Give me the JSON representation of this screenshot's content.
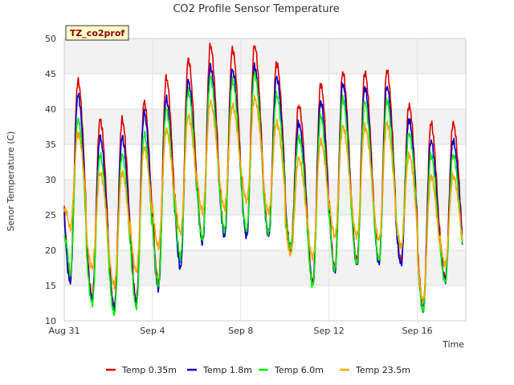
{
  "chart_data": {
    "type": "line",
    "title": "CO2 Profile Sensor Temperature",
    "xlabel": "Time",
    "ylabel": "Senor Temperature (C)",
    "site_tag": "TZ_co2prof",
    "ylim": [
      10,
      50
    ],
    "yticks": [
      10,
      15,
      20,
      25,
      30,
      35,
      40,
      45,
      50
    ],
    "xlim_days": [
      0,
      18.2
    ],
    "xticks": [
      {
        "day": 0,
        "label": "Aug 31"
      },
      {
        "day": 4,
        "label": "Sep 4"
      },
      {
        "day": 8,
        "label": "Sep 8"
      },
      {
        "day": 12,
        "label": "Sep 12"
      },
      {
        "day": 16,
        "label": "Sep 16"
      }
    ],
    "grid": true,
    "legend_position": "bottom",
    "series": [
      {
        "name": "Temp 0.35m",
        "color": "#dd0000",
        "day_min": [
          16,
          13.5,
          12,
          13,
          15.5,
          18.5,
          21.5,
          22.5,
          22.2,
          22.5,
          20.5,
          15.5,
          17.5,
          18.5,
          18.5,
          18.5,
          12,
          16
        ],
        "day_max": [
          44,
          38.5,
          38.5,
          41,
          44.5,
          47,
          49,
          48.5,
          49,
          46.5,
          40.5,
          43.5,
          45.2,
          45.2,
          45.5,
          40.5,
          38,
          38
        ]
      },
      {
        "name": "Temp 1.8m",
        "color": "#0000cc",
        "day_min": [
          15.5,
          13,
          11.8,
          12.5,
          14.5,
          17.5,
          21,
          22,
          22,
          22,
          20,
          15.2,
          17,
          18,
          18.2,
          18,
          11.5,
          15.8
        ],
        "day_max": [
          42,
          36,
          36,
          39.5,
          41.5,
          44,
          46,
          45.5,
          46,
          44.5,
          38,
          41,
          43.5,
          43,
          43.2,
          38.5,
          35.5,
          35.5
        ]
      },
      {
        "name": "Temp 6.0m",
        "color": "#00ee00",
        "day_min": [
          16.5,
          12.5,
          11,
          12,
          15,
          19,
          21.5,
          22.8,
          22.8,
          22.5,
          20.5,
          15,
          17.2,
          18.2,
          18.7,
          20.5,
          11.5,
          15.5
        ],
        "day_max": [
          38.5,
          33.5,
          33.5,
          36.5,
          40,
          42.5,
          44.5,
          44,
          45,
          42,
          36,
          39,
          41.5,
          41,
          41.2,
          36.5,
          33.5,
          33.5
        ],
        "start_value": 21.5
      },
      {
        "name": "Temp 23.5m",
        "color": "#ffa500",
        "day_min": [
          23,
          17.5,
          15,
          17,
          20.5,
          22.5,
          25.5,
          26,
          27,
          25.5,
          19.5,
          19,
          22,
          22,
          21.5,
          20.5,
          13,
          18
        ],
        "day_max": [
          36.5,
          31,
          31,
          34.5,
          37,
          39,
          41,
          40.5,
          41.5,
          38,
          33,
          35.5,
          37.5,
          37.5,
          38,
          33.5,
          30.5,
          30.5
        ],
        "start_value": 25.5
      }
    ]
  }
}
